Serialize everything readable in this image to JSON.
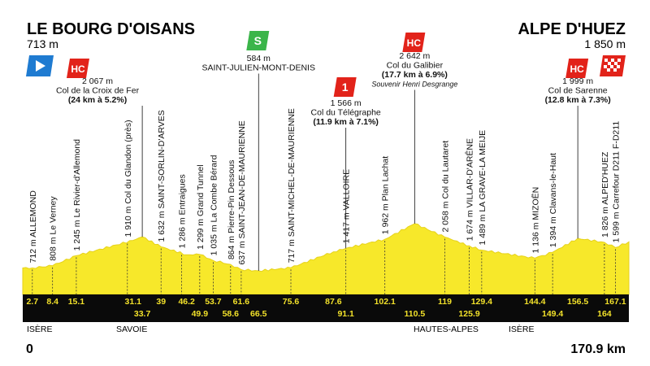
{
  "header": {
    "start_name": "LE BOURG D'OISANS",
    "start_alt": "713 m",
    "finish_name": "ALPE D'HUEZ",
    "finish_alt": "1 850 m"
  },
  "colors": {
    "profile_fill": "#f7e82a",
    "band": "#0a0a0a",
    "km_text": "#f2e12a",
    "hc_red": "#e2231a",
    "sprint_green": "#3bb54a",
    "start_blue": "#1f7bd1"
  },
  "climbs": [
    {
      "badge": "HC",
      "lines": [
        "2 067 m",
        "Col de la Croix de Fer",
        "(24 km à 5.2%)"
      ]
    },
    {
      "badge": "S",
      "lines": [
        "584 m",
        "SAINT-JULIEN-MONT-DENIS"
      ]
    },
    {
      "badge": "1",
      "lines": [
        "1 566 m",
        "Col du Télégraphe",
        "(11.9 km à 7.1%)"
      ]
    },
    {
      "badge": "HC",
      "lines": [
        "2 642 m",
        "Col du Galibier",
        "(17.7 km à 6.9%)",
        "Souvenir Henri Desgrange"
      ]
    },
    {
      "badge": "HC",
      "lines": [
        "1 999 m",
        "Col de Sarenne",
        "(12.8 km à 7.3%)"
      ]
    }
  ],
  "places": [
    "712 m ALLEMOND",
    "808 m Le Verney",
    "1 245 m Le Rivier-d'Allemond",
    "1 910 m Col du Glandon (près)",
    "1 632 m SAINT-SORLIN-D'ARVES",
    "1 286 m Entraigues",
    "1 299 m Grand Tunnel",
    "1 035 m La Combe Bérard",
    "864 m Pierre-Pin Dessous",
    "637 m SAINT-JEAN-DE-MAURIENNE",
    "717 m SAINT-MICHEL-DE-MAURIENNE",
    "1 417 m VALLOIRE",
    "1 962 m Plan Lachat",
    "2 058 m Col du Lautaret",
    "1 674 m VILLAR-D'ARÊNE",
    "1 489 m LA GRAVE-LA MEIJE",
    "1 136 m MIZOËN",
    "1 394 m Clavans-le-Haut",
    "1 826 m ALPED'HUEZ",
    "1 599 m Carrefour D211 F-D211"
  ],
  "km_top": [
    "2.7",
    "8.4",
    "15.1",
    "31.1",
    "39",
    "46.2",
    "53.7",
    "61.6",
    "75.6",
    "87.6",
    "102.1",
    "119",
    "129.4",
    "144.4",
    "156.5",
    "167.1"
  ],
  "km_bottom": [
    "33.7",
    "49.9",
    "58.6",
    "66.5",
    "91.1",
    "110.5",
    "125.9",
    "149.4",
    "164"
  ],
  "regions": [
    "ISÈRE",
    "SAVOIE",
    "HAUTES-ALPES",
    "ISÈRE"
  ],
  "footer": {
    "start_km": "0",
    "end_km": "170.9 km"
  },
  "chart_data": {
    "type": "area",
    "title": "",
    "xlabel": "",
    "ylabel": "",
    "x": [
      0,
      2.7,
      8.4,
      15.1,
      31.1,
      33.7,
      39,
      46.2,
      49.9,
      53.7,
      58.6,
      61.6,
      66.5,
      75.6,
      87.6,
      91.1,
      102.1,
      110.5,
      119,
      125.9,
      129.4,
      144.4,
      149.4,
      156.5,
      164,
      167.1,
      170.9
    ],
    "y": [
      713,
      712,
      808,
      1245,
      1910,
      2067,
      1632,
      1286,
      1299,
      1035,
      864,
      637,
      584,
      717,
      1417,
      1566,
      1962,
      2642,
      2058,
      1674,
      1489,
      1136,
      1394,
      1999,
      1826,
      1599,
      1850
    ],
    "xlim": [
      0,
      170.9
    ],
    "grid": false
  }
}
